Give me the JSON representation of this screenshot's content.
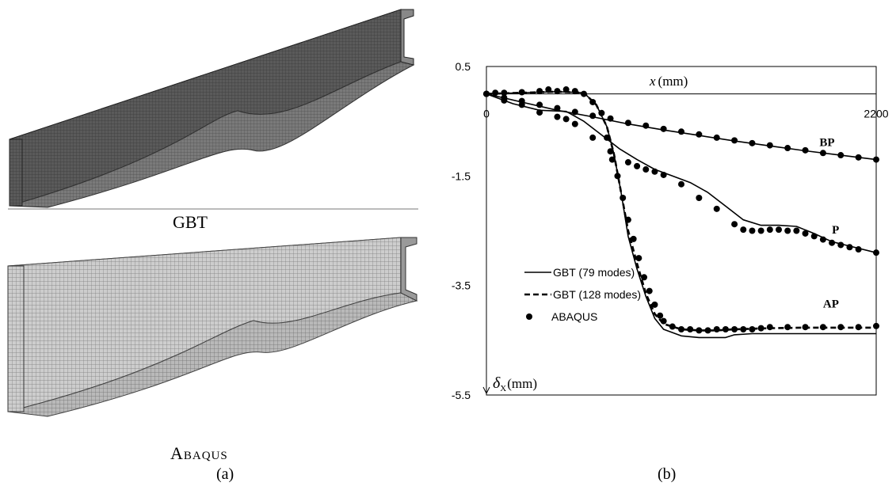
{
  "figure": {
    "panel_a": {
      "label": "(a)",
      "top_caption": "GBT",
      "bottom_caption": "Abaqus"
    },
    "panel_b": {
      "label": "(b)"
    }
  },
  "chart_data": {
    "type": "line",
    "xlabel": "x (mm)",
    "ylabel": "δX (mm)",
    "xlabel_var": "x",
    "xlabel_unit": "(mm)",
    "ylabel_var": "δ",
    "ylabel_sub": "X",
    "ylabel_unit": "(mm)",
    "xlim": [
      0,
      2200
    ],
    "ylim": [
      -5.5,
      0.5
    ],
    "x_ticks": [
      "0",
      "2200"
    ],
    "y_ticks": [
      "0.5",
      "-1.5",
      "-3.5",
      "-5.5"
    ],
    "y_tick_values": [
      0.5,
      -1.5,
      -3.5,
      -5.5
    ],
    "legend": [
      {
        "label": "GBT (79 modes)",
        "style": "solid"
      },
      {
        "label": "GBT (128 modes)",
        "style": "dashed"
      },
      {
        "label": "ABAQUS",
        "style": "dot"
      }
    ],
    "curve_labels": [
      {
        "text": "BP",
        "x": 1880,
        "y": -0.95
      },
      {
        "text": "P",
        "x": 1950,
        "y": -2.55
      },
      {
        "text": "AP",
        "x": 1900,
        "y": -3.9
      }
    ],
    "series": [
      {
        "name": "BP",
        "method": "GBT (79 modes)",
        "style": "solid",
        "x": [
          0,
          200,
          400,
          600,
          800,
          1000,
          1200,
          1400,
          1600,
          1800,
          2000,
          2200
        ],
        "y": [
          0,
          -0.15,
          -0.3,
          -0.42,
          -0.55,
          -0.66,
          -0.76,
          -0.86,
          -0.95,
          -1.04,
          -1.12,
          -1.2
        ]
      },
      {
        "name": "BP",
        "method": "ABAQUS",
        "style": "dot",
        "x": [
          0,
          100,
          200,
          300,
          400,
          500,
          600,
          700,
          800,
          900,
          1000,
          1100,
          1200,
          1300,
          1400,
          1500,
          1600,
          1700,
          1800,
          1900,
          2000,
          2100,
          2200
        ],
        "y": [
          0,
          -0.07,
          -0.13,
          -0.2,
          -0.26,
          -0.33,
          -0.4,
          -0.45,
          -0.53,
          -0.58,
          -0.64,
          -0.69,
          -0.74,
          -0.8,
          -0.85,
          -0.9,
          -0.94,
          -0.99,
          -1.03,
          -1.08,
          -1.12,
          -1.16,
          -1.2
        ]
      },
      {
        "name": "P",
        "method": "GBT (79 modes)",
        "style": "solid",
        "x": [
          0,
          150,
          300,
          450,
          550,
          650,
          750,
          850,
          950,
          1050,
          1150,
          1250,
          1350,
          1450,
          1550,
          1650,
          1750,
          1850,
          1950,
          2050,
          2200
        ],
        "y": [
          0,
          -0.18,
          -0.3,
          -0.32,
          -0.5,
          -0.75,
          -1.0,
          -1.2,
          -1.38,
          -1.5,
          -1.62,
          -1.8,
          -2.05,
          -2.3,
          -2.4,
          -2.4,
          -2.42,
          -2.55,
          -2.7,
          -2.78,
          -2.9
        ]
      },
      {
        "name": "P",
        "method": "ABAQUS",
        "style": "dot",
        "x": [
          0,
          100,
          200,
          300,
          400,
          450,
          500,
          600,
          700,
          800,
          850,
          900,
          950,
          1000,
          1100,
          1200,
          1300,
          1400,
          1450,
          1500,
          1550,
          1600,
          1650,
          1700,
          1750,
          1800,
          1850,
          1900,
          1950,
          2000,
          2050,
          2100,
          2200
        ],
        "y": [
          0,
          -0.12,
          -0.2,
          -0.34,
          -0.42,
          -0.46,
          -0.55,
          -0.8,
          -1.05,
          -1.25,
          -1.32,
          -1.38,
          -1.42,
          -1.48,
          -1.65,
          -1.9,
          -2.1,
          -2.38,
          -2.48,
          -2.5,
          -2.5,
          -2.48,
          -2.48,
          -2.5,
          -2.5,
          -2.55,
          -2.6,
          -2.66,
          -2.72,
          -2.76,
          -2.8,
          -2.84,
          -2.9
        ]
      },
      {
        "name": "AP",
        "method": "GBT (79 modes)",
        "style": "solid",
        "x": [
          0,
          200,
          300,
          400,
          550,
          620,
          680,
          720,
          760,
          800,
          850,
          900,
          950,
          1000,
          1100,
          1200,
          1300,
          1350,
          1400,
          1500,
          1600,
          1800,
          2000,
          2200
        ],
        "y": [
          0,
          0.02,
          0.03,
          0.04,
          0.02,
          -0.2,
          -0.6,
          -1.1,
          -1.8,
          -2.6,
          -3.2,
          -3.7,
          -4.1,
          -4.3,
          -4.42,
          -4.45,
          -4.45,
          -4.45,
          -4.4,
          -4.38,
          -4.38,
          -4.38,
          -4.38,
          -4.38
        ]
      },
      {
        "name": "AP",
        "method": "GBT (128 modes)",
        "style": "dashed",
        "x": [
          0,
          200,
          300,
          400,
          550,
          620,
          680,
          720,
          760,
          800,
          850,
          900,
          950,
          1000,
          1100,
          1200,
          1300,
          1400,
          1600,
          1800,
          2000,
          2200
        ],
        "y": [
          0,
          0.02,
          0.03,
          0.04,
          0.02,
          -0.2,
          -0.6,
          -1.1,
          -1.8,
          -2.5,
          -3.1,
          -3.65,
          -4.02,
          -4.2,
          -4.3,
          -4.32,
          -4.32,
          -4.3,
          -4.28,
          -4.27,
          -4.27,
          -4.27
        ]
      },
      {
        "name": "AP",
        "method": "ABAQUS",
        "style": "dot",
        "x": [
          0,
          50,
          100,
          200,
          300,
          350,
          400,
          450,
          500,
          550,
          600,
          650,
          680,
          710,
          740,
          770,
          800,
          830,
          860,
          890,
          920,
          950,
          980,
          1000,
          1050,
          1100,
          1150,
          1200,
          1250,
          1300,
          1350,
          1400,
          1450,
          1500,
          1550,
          1600,
          1700,
          1800,
          1900,
          2000,
          2100,
          2200
        ],
        "y": [
          0,
          0.02,
          0.02,
          0.03,
          0.05,
          0.08,
          0.05,
          0.08,
          0.05,
          0.0,
          -0.15,
          -0.35,
          -0.8,
          -1.2,
          -1.5,
          -1.9,
          -2.3,
          -2.65,
          -3.0,
          -3.35,
          -3.6,
          -3.85,
          -4.05,
          -4.15,
          -4.25,
          -4.3,
          -4.3,
          -4.32,
          -4.32,
          -4.3,
          -4.3,
          -4.3,
          -4.3,
          -4.3,
          -4.28,
          -4.26,
          -4.26,
          -4.26,
          -4.26,
          -4.26,
          -4.26,
          -4.24
        ]
      }
    ]
  }
}
